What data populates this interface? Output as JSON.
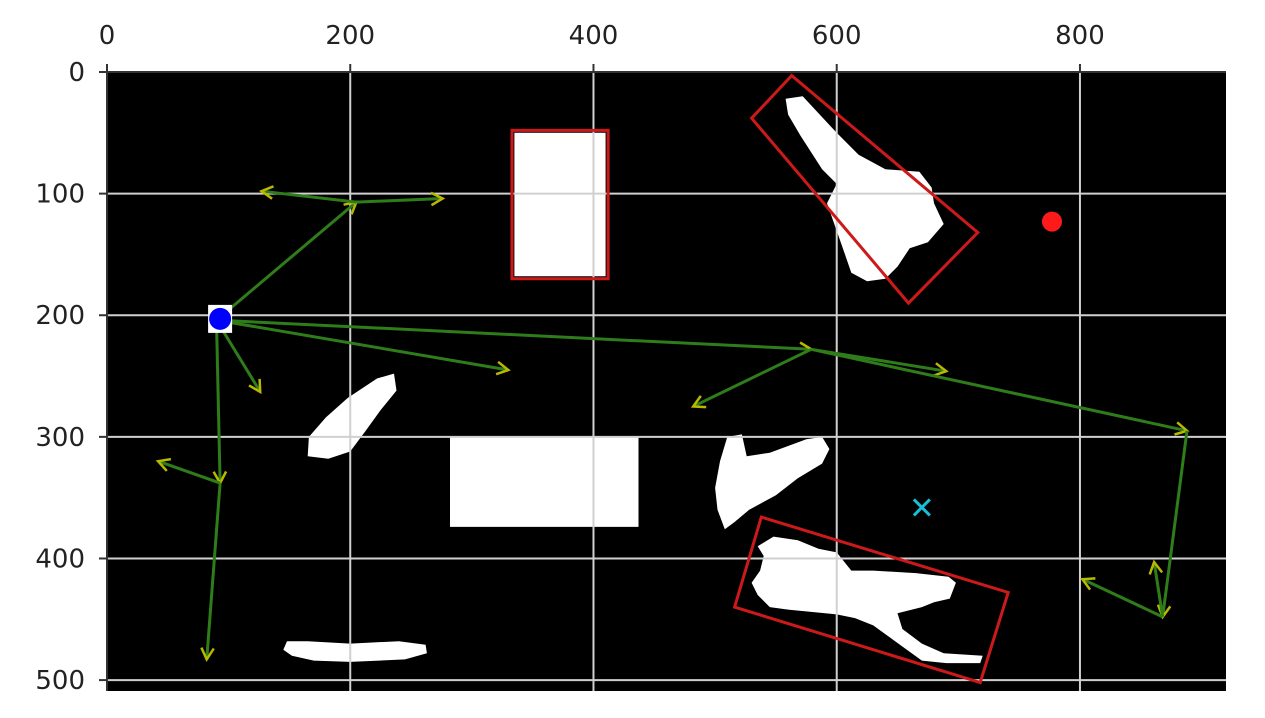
{
  "chart_data": {
    "type": "scatter",
    "title": "",
    "xlabel": "",
    "ylabel": "",
    "xlim": [
      0,
      920
    ],
    "ylim": [
      512,
      0
    ],
    "x_ticks": [
      0,
      200,
      400,
      600,
      800
    ],
    "y_ticks": [
      0,
      100,
      200,
      300,
      400,
      500
    ],
    "grid": true,
    "background_color": "#000000",
    "grid_color": "#d0d0d0",
    "colors": {
      "obstacle": "#ffffff",
      "bounding_box": "#cc1a1a",
      "path": "#2f7d1a",
      "arrow_head": "#b8b800",
      "start": "#0000ff",
      "goal": "#ff1a1a",
      "marker_x": "#17bfd6"
    },
    "obstacles": [
      {
        "name": "rect-1",
        "points": [
          [
            335,
            50
          ],
          [
            410,
            50
          ],
          [
            410,
            168
          ],
          [
            335,
            168
          ]
        ]
      },
      {
        "name": "rect-2",
        "points": [
          [
            282,
            300
          ],
          [
            437,
            300
          ],
          [
            437,
            374
          ],
          [
            282,
            374
          ]
        ]
      },
      {
        "name": "blob-upper-right",
        "points": [
          [
            558,
            22
          ],
          [
            572,
            20
          ],
          [
            600,
            50
          ],
          [
            618,
            68
          ],
          [
            640,
            80
          ],
          [
            668,
            82
          ],
          [
            678,
            95
          ],
          [
            680,
            108
          ],
          [
            688,
            125
          ],
          [
            675,
            140
          ],
          [
            660,
            145
          ],
          [
            650,
            160
          ],
          [
            640,
            170
          ],
          [
            625,
            172
          ],
          [
            612,
            165
          ],
          [
            604,
            142
          ],
          [
            598,
            125
          ],
          [
            592,
            108
          ],
          [
            600,
            92
          ],
          [
            588,
            80
          ],
          [
            570,
            52
          ],
          [
            560,
            35
          ]
        ]
      },
      {
        "name": "blob-diagonal-left",
        "points": [
          [
            222,
            252
          ],
          [
            236,
            248
          ],
          [
            238,
            262
          ],
          [
            225,
            278
          ],
          [
            212,
            296
          ],
          [
            200,
            312
          ],
          [
            182,
            318
          ],
          [
            165,
            316
          ],
          [
            166,
            300
          ],
          [
            180,
            284
          ],
          [
            198,
            268
          ]
        ]
      },
      {
        "name": "blob-middle",
        "points": [
          [
            510,
            300
          ],
          [
            522,
            298
          ],
          [
            526,
            316
          ],
          [
            545,
            313
          ],
          [
            575,
            302
          ],
          [
            588,
            300
          ],
          [
            594,
            310
          ],
          [
            588,
            322
          ],
          [
            568,
            334
          ],
          [
            550,
            348
          ],
          [
            528,
            360
          ],
          [
            516,
            370
          ],
          [
            508,
            376
          ],
          [
            502,
            360
          ],
          [
            500,
            342
          ],
          [
            504,
            320
          ]
        ]
      },
      {
        "name": "blob-lower-right",
        "points": [
          [
            548,
            382
          ],
          [
            568,
            385
          ],
          [
            585,
            392
          ],
          [
            600,
            395
          ],
          [
            612,
            410
          ],
          [
            630,
            410
          ],
          [
            665,
            412
          ],
          [
            692,
            415
          ],
          [
            698,
            420
          ],
          [
            693,
            433
          ],
          [
            680,
            436
          ],
          [
            670,
            440
          ],
          [
            650,
            445
          ],
          [
            654,
            458
          ],
          [
            670,
            470
          ],
          [
            688,
            478
          ],
          [
            720,
            480
          ],
          [
            718,
            486
          ],
          [
            690,
            486
          ],
          [
            670,
            484
          ],
          [
            648,
            468
          ],
          [
            630,
            455
          ],
          [
            615,
            449
          ],
          [
            600,
            446
          ],
          [
            580,
            444
          ],
          [
            560,
            442
          ],
          [
            545,
            440
          ],
          [
            535,
            430
          ],
          [
            530,
            420
          ],
          [
            537,
            410
          ],
          [
            540,
            398
          ],
          [
            535,
            390
          ]
        ]
      },
      {
        "name": "blob-bottom-bar",
        "points": [
          [
            148,
            468
          ],
          [
            165,
            468
          ],
          [
            200,
            470
          ],
          [
            240,
            468
          ],
          [
            262,
            471
          ],
          [
            263,
            478
          ],
          [
            245,
            483
          ],
          [
            200,
            485
          ],
          [
            170,
            484
          ],
          [
            152,
            480
          ],
          [
            145,
            475
          ]
        ]
      }
    ],
    "bounding_boxes": [
      {
        "name": "box-rect-1",
        "points": [
          [
            333,
            48
          ],
          [
            412,
            48
          ],
          [
            412,
            170
          ],
          [
            333,
            170
          ]
        ]
      },
      {
        "name": "box-upper-right",
        "points": [
          [
            530,
            38
          ],
          [
            563,
            3
          ],
          [
            716,
            132
          ],
          [
            659,
            190
          ]
        ]
      },
      {
        "name": "box-lower-right",
        "points": [
          [
            538,
            366
          ],
          [
            741,
            428
          ],
          [
            718,
            502
          ],
          [
            516,
            440
          ]
        ]
      }
    ],
    "path_segments": [
      [
        [
          90,
          204
        ],
        [
          205,
          107
        ]
      ],
      [
        [
          205,
          107
        ],
        [
          127,
          98
        ]
      ],
      [
        [
          205,
          107
        ],
        [
          276,
          104
        ]
      ],
      [
        [
          90,
          204
        ],
        [
          330,
          245
        ]
      ],
      [
        [
          90,
          204
        ],
        [
          126,
          263
        ]
      ],
      [
        [
          90,
          204
        ],
        [
          93,
          338
        ]
      ],
      [
        [
          93,
          338
        ],
        [
          42,
          320
        ]
      ],
      [
        [
          93,
          338
        ],
        [
          82,
          483
        ]
      ],
      [
        [
          90,
          204
        ],
        [
          579,
          228
        ]
      ],
      [
        [
          579,
          228
        ],
        [
          482,
          275
        ]
      ],
      [
        [
          579,
          228
        ],
        [
          690,
          246
        ]
      ],
      [
        [
          579,
          228
        ],
        [
          888,
          295
        ]
      ],
      [
        [
          888,
          295
        ],
        [
          868,
          448
        ]
      ],
      [
        [
          868,
          448
        ],
        [
          802,
          417
        ]
      ],
      [
        [
          868,
          448
        ],
        [
          861,
          403
        ]
      ]
    ],
    "start_point": {
      "x": 93,
      "y": 203
    },
    "goal_point": {
      "x": 777,
      "y": 123
    },
    "x_marker": {
      "x": 670,
      "y": 358
    }
  }
}
